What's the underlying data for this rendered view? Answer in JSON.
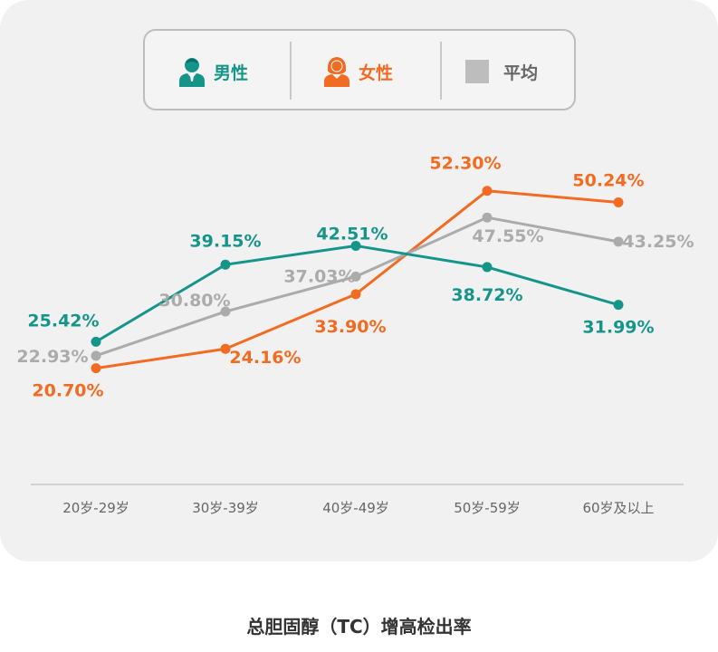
{
  "legend": {
    "male_label": "男性",
    "female_label": "女性",
    "average_label": "平均"
  },
  "caption": "总胆固醇（TC）增高检出率",
  "colors": {
    "male": "#15958a",
    "female": "#f26b22",
    "average": "#ababab",
    "axis": "#d2d2d2",
    "tick_text": "#666666"
  },
  "chart_data": {
    "type": "line",
    "title": "总胆固醇（TC）增高检出率",
    "xlabel": "",
    "ylabel": "",
    "categories": [
      "20岁-29岁",
      "30岁-39岁",
      "40岁-49岁",
      "50岁-59岁",
      "60岁及以上"
    ],
    "ylim": [
      0,
      60
    ],
    "grid": false,
    "legend_position": "top-center",
    "series": [
      {
        "name": "男性",
        "color": "#15958a",
        "values": [
          25.42,
          39.15,
          42.51,
          38.72,
          31.99
        ],
        "labels": [
          "25.42%",
          "39.15%",
          "42.51%",
          "38.72%",
          "31.99%"
        ]
      },
      {
        "name": "女性",
        "color": "#f26b22",
        "values": [
          20.7,
          24.16,
          33.9,
          52.3,
          50.24
        ],
        "labels": [
          "20.70%",
          "24.16%",
          "33.90%",
          "52.30%",
          "50.24%"
        ]
      },
      {
        "name": "平均",
        "color": "#ababab",
        "values": [
          22.93,
          30.8,
          37.03,
          47.55,
          43.25
        ],
        "labels": [
          "22.93%",
          "30.80%",
          "37.03%",
          "47.55%",
          "43.25%"
        ]
      }
    ]
  }
}
